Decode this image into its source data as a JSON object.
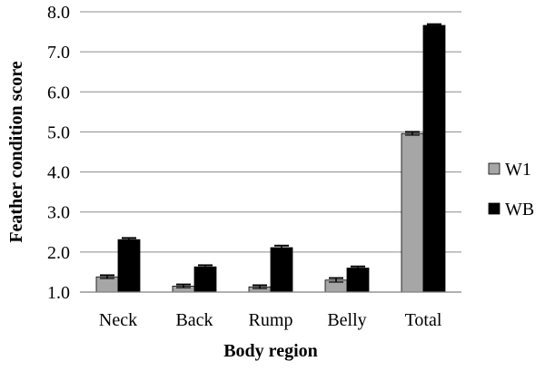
{
  "chart_data": {
    "type": "bar",
    "categories": [
      "Neck",
      "Back",
      "Rump",
      "Belly",
      "Total"
    ],
    "series": [
      {
        "name": "W1",
        "values": [
          1.38,
          1.15,
          1.13,
          1.3,
          4.96
        ],
        "errors": [
          0.04,
          0.04,
          0.04,
          0.05,
          0.04
        ],
        "color": "#a6a6a6"
      },
      {
        "name": "WB",
        "values": [
          2.31,
          1.63,
          2.11,
          1.6,
          7.66
        ],
        "errors": [
          0.04,
          0.04,
          0.05,
          0.04,
          0.03
        ],
        "color": "#000000"
      }
    ],
    "xlabel": "Body region",
    "ylabel": "Feather condition score",
    "ylim": [
      1.0,
      8.0
    ],
    "yticks": [
      "1.0",
      "2.0",
      "3.0",
      "4.0",
      "5.0",
      "6.0",
      "7.0",
      "8.0"
    ],
    "grid": true,
    "legend_position": "right",
    "error_bars": true
  }
}
